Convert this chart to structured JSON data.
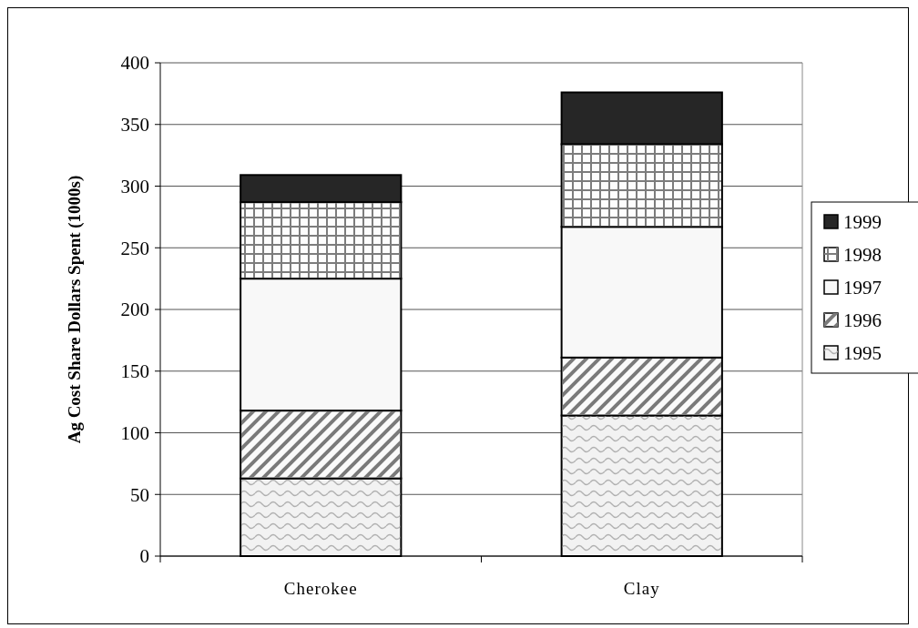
{
  "chart_data": {
    "type": "bar",
    "stacked": true,
    "ylabel": "Ag Cost Share Dollars Spent (1000s)",
    "categories": [
      "Cherokee",
      "Clay"
    ],
    "series": [
      {
        "name": "1995",
        "color": "#f2f2f2",
        "values": [
          63,
          114
        ]
      },
      {
        "name": "1996",
        "color": "#fafafa",
        "values": [
          55,
          47
        ]
      },
      {
        "name": "1997",
        "color": "#f8f8f8",
        "values": [
          107,
          106
        ]
      },
      {
        "name": "1998",
        "color": "#fdfdfd",
        "values": [
          62,
          67
        ]
      },
      {
        "name": "1999",
        "color": "#262626",
        "values": [
          22,
          42
        ]
      }
    ],
    "ylim": [
      0,
      400
    ],
    "yticks": [
      0,
      50,
      100,
      150,
      200,
      250,
      300,
      350,
      400
    ],
    "grid": "y",
    "legend": "right"
  }
}
